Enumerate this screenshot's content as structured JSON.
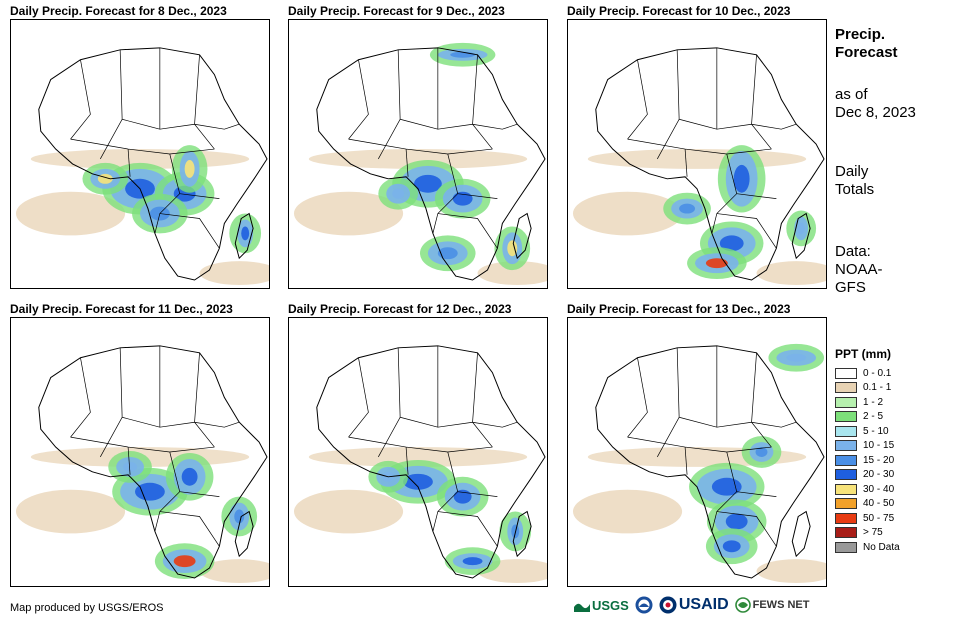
{
  "panels": [
    {
      "title": "Daily Precip. Forecast for 8 Dec., 2023"
    },
    {
      "title": "Daily Precip. Forecast for 9 Dec., 2023"
    },
    {
      "title": "Daily Precip. Forecast for 10 Dec., 2023"
    },
    {
      "title": "Daily Precip. Forecast for 11 Dec., 2023"
    },
    {
      "title": "Daily Precip. Forecast for 12 Dec., 2023"
    },
    {
      "title": "Daily Precip. Forecast for 13 Dec., 2023"
    }
  ],
  "side": {
    "title_line1": "Precip.",
    "title_line2": "Forecast",
    "asof_line1": "as of",
    "asof_line2": "Dec 8, 2023",
    "totals_line1": "Daily",
    "totals_line2": "Totals",
    "data_line1": "Data:",
    "data_line2": "NOAA-",
    "data_line3": "GFS"
  },
  "legend": {
    "title": "PPT (mm)",
    "items": [
      {
        "label": "0 - 0.1",
        "color": "#ffffff"
      },
      {
        "label": "0.1 - 1",
        "color": "#e8d3b4"
      },
      {
        "label": "1 - 2",
        "color": "#b6f0ae"
      },
      {
        "label": "2 - 5",
        "color": "#7de07a"
      },
      {
        "label": "5 - 10",
        "color": "#a9e6ef"
      },
      {
        "label": "10 - 15",
        "color": "#7ab2ea"
      },
      {
        "label": "15 - 20",
        "color": "#4a8fe6"
      },
      {
        "label": "20 - 30",
        "color": "#1f5fe0"
      },
      {
        "label": "30 - 40",
        "color": "#f7e37a"
      },
      {
        "label": "40 - 50",
        "color": "#f2a12a"
      },
      {
        "label": "50 - 75",
        "color": "#e83b12"
      },
      {
        "label": "> 75",
        "color": "#a81d17"
      },
      {
        "label": "No Data",
        "color": "#999999"
      }
    ]
  },
  "credit": "Map produced by USGS/EROS",
  "logos": {
    "usgs": "USGS",
    "noaa": "NOAA",
    "usaid": "USAID",
    "fews": "FEWS NET"
  }
}
